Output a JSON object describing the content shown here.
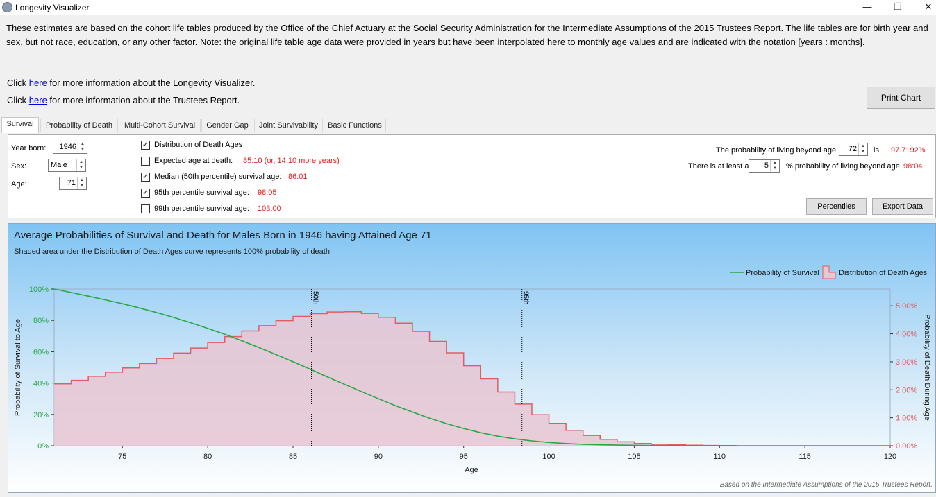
{
  "window": {
    "title": "Longevity Visualizer",
    "controls": [
      "—",
      "❐",
      "✕"
    ]
  },
  "intro_text": "These estimates are based on the cohort life tables produced by the Office of the Chief Actuary at the Social Security Administration for the Intermediate Assumptions of the 2015 Trustees Report. The life tables are for birth year and sex, but not race, education, or any other factor. Note: the original life table age data were provided in years but have been interpolated here to monthly age values and are indicated with the notation [years : months].",
  "links": [
    {
      "prefix": "Click ",
      "link": "here",
      "suffix": " for more information about the Longevity Visualizer."
    },
    {
      "prefix": "Click ",
      "link": "here",
      "suffix": " for more information about the Trustees Report."
    }
  ],
  "print_button": "Print Chart",
  "tabs": [
    "Survival",
    "Probability of Death",
    "Multi-Cohort Survival",
    "Gender Gap",
    "Joint Survivability",
    "Basic Functions"
  ],
  "controls": {
    "year_label": "Year born:",
    "year_value": "1946",
    "sex_label": "Sex:",
    "sex_value": "Male",
    "age_label": "Age:",
    "age_value": "71"
  },
  "options": [
    {
      "label": "Distribution of Death Ages",
      "checked": true,
      "value": ""
    },
    {
      "label": "Expected age at death:",
      "checked": false,
      "value": "85:10 (or, 14:10 more years)"
    },
    {
      "label": "Median (50th percentile) survival age:",
      "checked": true,
      "value": "86:01"
    },
    {
      "label": "95th percentile survival age:",
      "checked": true,
      "value": "98:05"
    },
    {
      "label": "99th percentile survival age:",
      "checked": false,
      "value": "103:00"
    }
  ],
  "right_panel": {
    "p1_prefix": "The probability of living beyond age",
    "p1_age": "72",
    "p1_is": "is",
    "p1_value": "97.7192%",
    "p2_prefix": "There is at least a",
    "p2_pct": "5",
    "p2_suffix": "% probability of living beyond age",
    "p2_value": "98:04"
  },
  "buttons": {
    "percentiles": "Percentiles",
    "export": "Export Data"
  },
  "checkmark": "✓",
  "spin_arrows": {
    "up": "▲",
    "down": "▼"
  },
  "chart_data": {
    "type": "line",
    "title": "Average Probabilities of Survival and Death for Males Born in 1946 having Attained Age 71",
    "subtitle": "Shaded area under the Distribution of Death Ages curve represents 100% probability of death.",
    "xlabel": "Age",
    "ylabel_left": "Probability of Survival to Age",
    "ylabel_right": "Probability of Death During Age",
    "xlim": [
      71,
      120
    ],
    "ylim_left": [
      0,
      100
    ],
    "ylim_right": [
      0,
      5.6
    ],
    "x_ticks": [
      75,
      80,
      85,
      90,
      95,
      100,
      105,
      110,
      115,
      120
    ],
    "y_left_ticks": [
      "0%",
      "20%",
      "40%",
      "60%",
      "80%",
      "100%"
    ],
    "y_right_ticks": [
      "0.00%",
      "1.00%",
      "2.00%",
      "3.00%",
      "4.00%",
      "5.00%"
    ],
    "legend": {
      "placement": "top-right",
      "survival": "Probability of Survival",
      "death": "Distribution of Death Ages"
    },
    "markers": [
      {
        "label": "50th",
        "x": 86.08
      },
      {
        "label": "95th",
        "x": 98.42
      }
    ],
    "series": [
      {
        "name": "Probability of Survival",
        "color": "#28a745",
        "x": [
          71,
          72,
          73,
          74,
          75,
          76,
          77,
          78,
          79,
          80,
          81,
          82,
          83,
          84,
          85,
          86,
          87,
          88,
          89,
          90,
          91,
          92,
          93,
          94,
          95,
          96,
          97,
          98,
          99,
          100,
          101,
          102,
          103,
          104,
          105,
          106,
          107,
          108,
          110,
          112,
          115,
          120
        ],
        "values": [
          100,
          97.8,
          95.5,
          93.1,
          90.6,
          87.9,
          85.0,
          81.9,
          78.5,
          74.9,
          71.1,
          67.0,
          62.7,
          58.2,
          53.6,
          48.9,
          44.0,
          39.3,
          34.6,
          30.0,
          25.6,
          21.5,
          17.6,
          14.1,
          11.0,
          8.3,
          6.1,
          4.4,
          3.1,
          2.1,
          1.4,
          0.9,
          0.6,
          0.4,
          0.25,
          0.15,
          0.1,
          0.05,
          0.02,
          0.01,
          0,
          0
        ]
      },
      {
        "name": "Distribution of Death Ages",
        "color": "#e35c60",
        "fill": "#e8c6d2",
        "start_age": 71,
        "values": [
          2.21,
          2.34,
          2.48,
          2.63,
          2.78,
          2.94,
          3.12,
          3.31,
          3.49,
          3.69,
          3.9,
          4.1,
          4.29,
          4.47,
          4.62,
          4.72,
          4.78,
          4.79,
          4.73,
          4.59,
          4.38,
          4.09,
          3.73,
          3.32,
          2.86,
          2.39,
          1.92,
          1.49,
          1.11,
          0.8,
          0.55,
          0.37,
          0.23,
          0.14,
          0.08,
          0.05,
          0.03,
          0.02,
          0.01,
          0.005
        ]
      }
    ],
    "footnote": "Based on the Intermediate Assumptions of the 2015 Trustees Report."
  }
}
